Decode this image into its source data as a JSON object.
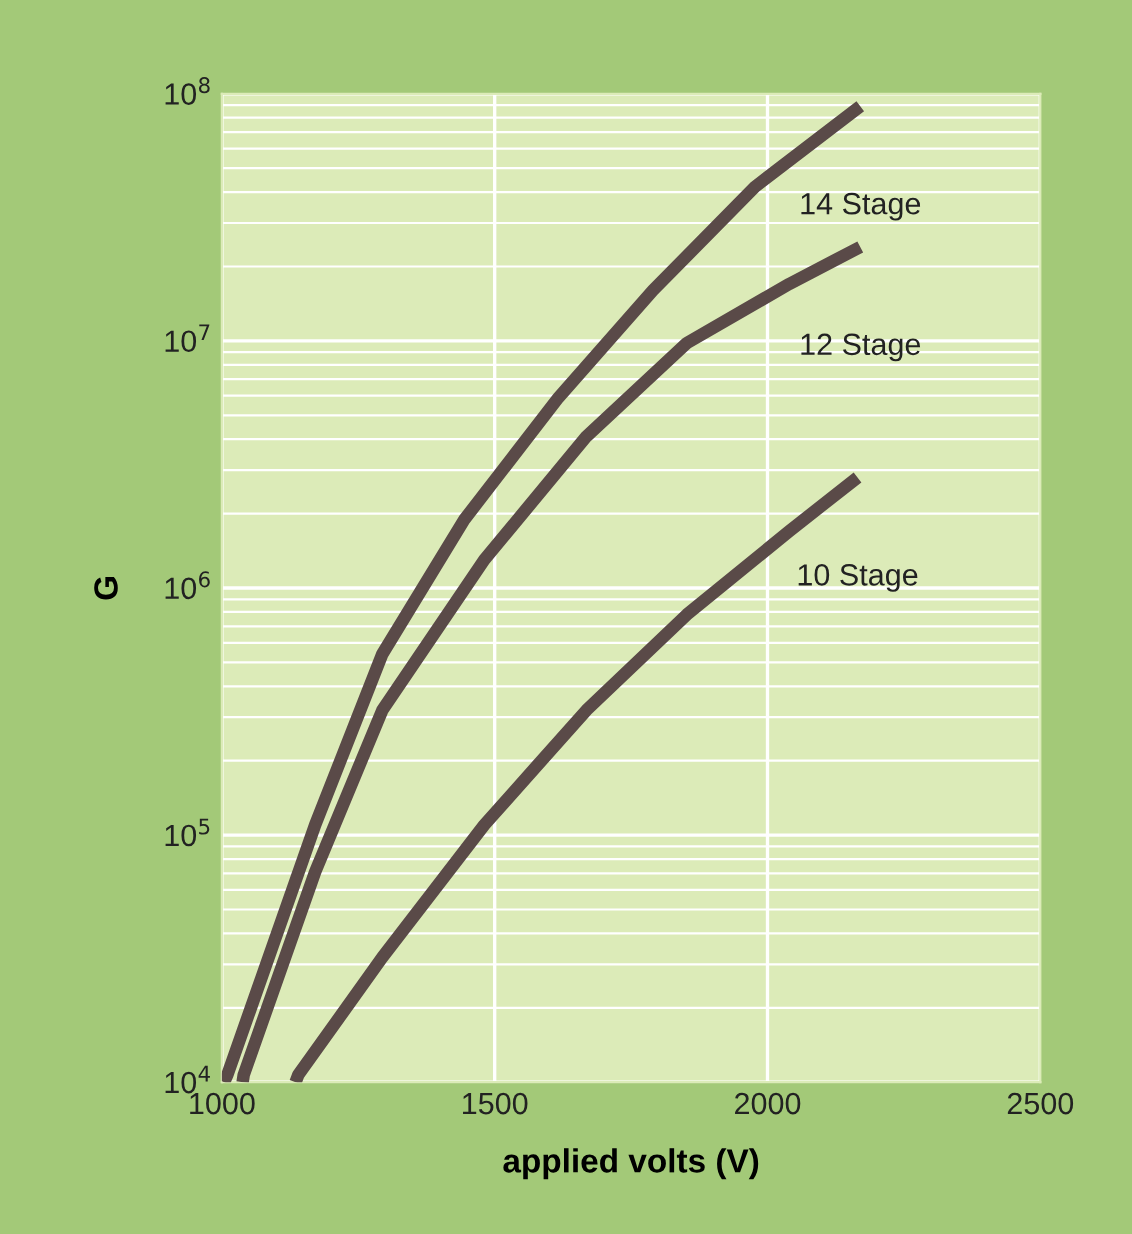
{
  "chart_data": {
    "type": "line",
    "xlabel": "applied volts (V)",
    "ylabel": "G",
    "log": "y",
    "grid": true,
    "legend": false,
    "marker": "none",
    "line_style": "solid",
    "xlim": [
      1000,
      2500
    ],
    "xticks": [
      1000,
      1500,
      2000,
      2500
    ],
    "ylim": [
      10000,
      100000000
    ],
    "yticks": [
      {
        "value": 10000,
        "label": "10$^{4}$"
      },
      {
        "value": 100000,
        "label": "10$^{5}$"
      },
      {
        "value": 1000000,
        "label": "10$^{6}$"
      },
      {
        "value": 10000000,
        "label": "10$^{7}$"
      },
      {
        "value": 100000000,
        "label": "10$^{8}$"
      }
    ],
    "series": [
      {
        "name": "14 Stage",
        "color": "#5a4a48",
        "x": [
          1004,
          1010,
          1171,
          1294,
          1445,
          1617,
          1790,
          1977,
          2170
        ],
        "values": [
          10000,
          10700,
          110000,
          540000,
          1900000,
          5900000,
          16000000,
          42000000,
          89000000
        ]
      },
      {
        "name": "12 Stage",
        "color": "#5a4a48",
        "x": [
          1038,
          1040,
          1171,
          1294,
          1481,
          1668,
          1852,
          2040,
          2170
        ],
        "values": [
          10000,
          10700,
          71000,
          320000,
          1300000,
          4100000,
          9800000,
          17000000,
          24000000
        ]
      },
      {
        "name": "10 Stage",
        "color": "#5a4a48",
        "x": [
          1135,
          1140,
          1294,
          1481,
          1668,
          1852,
          2040,
          2165
        ],
        "values": [
          10000,
          10700,
          32000,
          110000,
          320000,
          780000,
          1700000,
          2800000
        ]
      }
    ]
  }
}
